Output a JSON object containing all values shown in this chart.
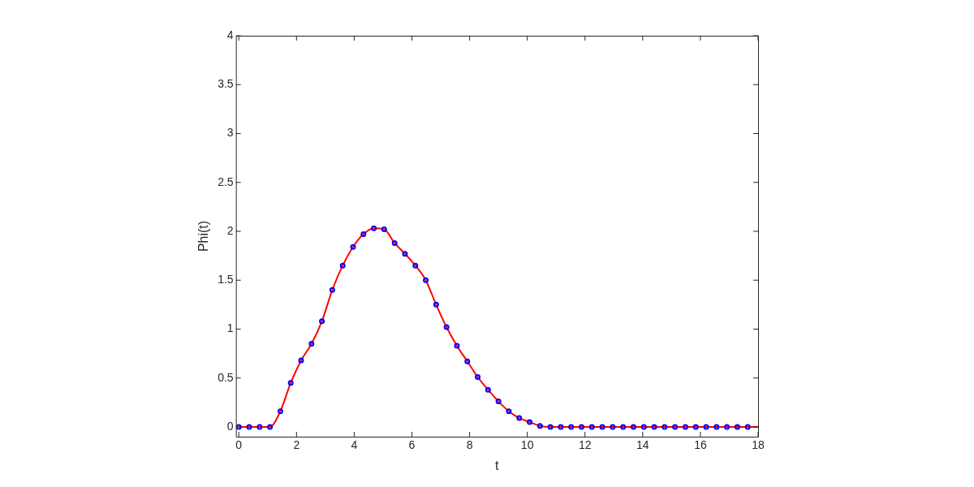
{
  "chart_data": {
    "type": "line",
    "xlabel": "t",
    "ylabel": "Phi(t)",
    "xlim": [
      -0.1,
      18
    ],
    "xticks": [
      0,
      2,
      4,
      6,
      8,
      10,
      12,
      14,
      16,
      18
    ],
    "ylim": [
      -0.1,
      4
    ],
    "yticks": [
      0,
      0.5,
      1,
      1.5,
      2,
      2.5,
      3,
      3.5,
      4
    ],
    "grid": false,
    "legend": false,
    "series": [
      {
        "color": "#ff0000",
        "marker": "none",
        "line_style": "solid",
        "x": [
          0,
          0.36,
          0.72,
          1.08,
          1.44,
          1.8,
          2.16,
          2.52,
          2.88,
          3.24,
          3.6,
          3.96,
          4.32,
          4.68,
          5.04,
          5.4,
          5.76,
          6.12,
          6.48,
          6.84,
          7.2,
          7.56,
          7.92,
          8.28,
          8.64,
          9,
          9.36,
          9.72,
          10.08,
          10.44,
          10.8,
          18
        ],
        "values": [
          0,
          0,
          0,
          0,
          0.16,
          0.45,
          0.68,
          0.85,
          1.08,
          1.4,
          1.65,
          1.84,
          1.97,
          2.03,
          2.02,
          1.88,
          1.77,
          1.65,
          1.5,
          1.25,
          1.02,
          0.83,
          0.67,
          0.51,
          0.38,
          0.26,
          0.16,
          0.09,
          0.05,
          0.01,
          0,
          0
        ]
      },
      {
        "type": "scatter",
        "color": "#0000ff",
        "marker": "circle",
        "x": [
          0,
          0.36,
          0.72,
          1.08,
          1.44,
          1.8,
          2.16,
          2.52,
          2.88,
          3.24,
          3.6,
          3.96,
          4.32,
          4.68,
          5.04,
          5.4,
          5.76,
          6.12,
          6.48,
          6.84,
          7.2,
          7.56,
          7.92,
          8.28,
          8.64,
          9,
          9.36,
          9.72,
          10.08,
          10.44,
          10.8,
          11.16,
          11.52,
          11.88,
          12.24,
          12.6,
          12.96,
          13.32,
          13.68,
          14.04,
          14.4,
          14.76,
          15.12,
          15.48,
          15.84,
          16.2,
          16.56,
          16.92,
          17.28,
          17.64
        ],
        "values": [
          0,
          0,
          0,
          0,
          0.16,
          0.45,
          0.68,
          0.85,
          1.08,
          1.4,
          1.65,
          1.84,
          1.97,
          2.03,
          2.02,
          1.88,
          1.77,
          1.65,
          1.5,
          1.25,
          1.02,
          0.83,
          0.67,
          0.51,
          0.38,
          0.26,
          0.16,
          0.09,
          0.05,
          0.01,
          0,
          0,
          0,
          0,
          0,
          0,
          0,
          0,
          0,
          0,
          0,
          0,
          0,
          0,
          0,
          0,
          0,
          0,
          0,
          0
        ]
      }
    ]
  }
}
